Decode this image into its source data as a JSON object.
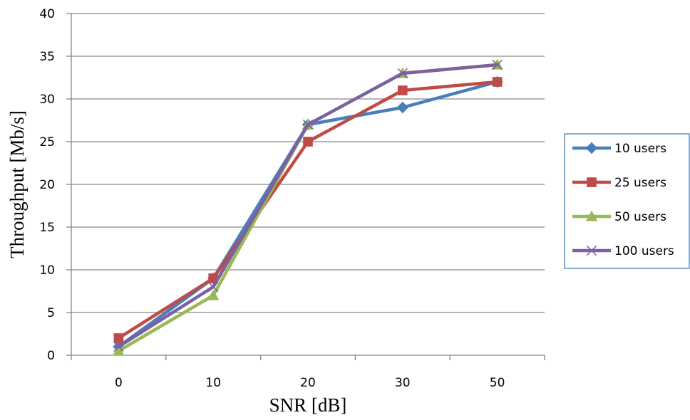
{
  "chart_data": {
    "type": "line",
    "categories": [
      "0",
      "10",
      "20",
      "30",
      "50"
    ],
    "xlabel": "SNR [dB]",
    "ylabel": "Throughput [Mb/s]",
    "ylim": [
      0,
      40
    ],
    "yticks": [
      "0",
      "5",
      "10",
      "15",
      "20",
      "25",
      "30",
      "35",
      "40"
    ],
    "grid": "horizontal",
    "legend_position": "right",
    "series": [
      {
        "name": "10 users",
        "values": [
          1,
          9,
          27,
          29,
          32
        ],
        "color": "#4A7EBB",
        "marker": "diamond"
      },
      {
        "name": "25 users",
        "values": [
          2,
          9,
          25,
          31,
          32
        ],
        "color": "#BE4B48",
        "marker": "square"
      },
      {
        "name": "50 users",
        "values": [
          0.5,
          7,
          27,
          33,
          34
        ],
        "color": "#98B954",
        "marker": "triangle"
      },
      {
        "name": "100 users",
        "values": [
          1,
          8,
          27,
          33,
          34
        ],
        "color": "#7D60A0",
        "marker": "x"
      }
    ]
  }
}
